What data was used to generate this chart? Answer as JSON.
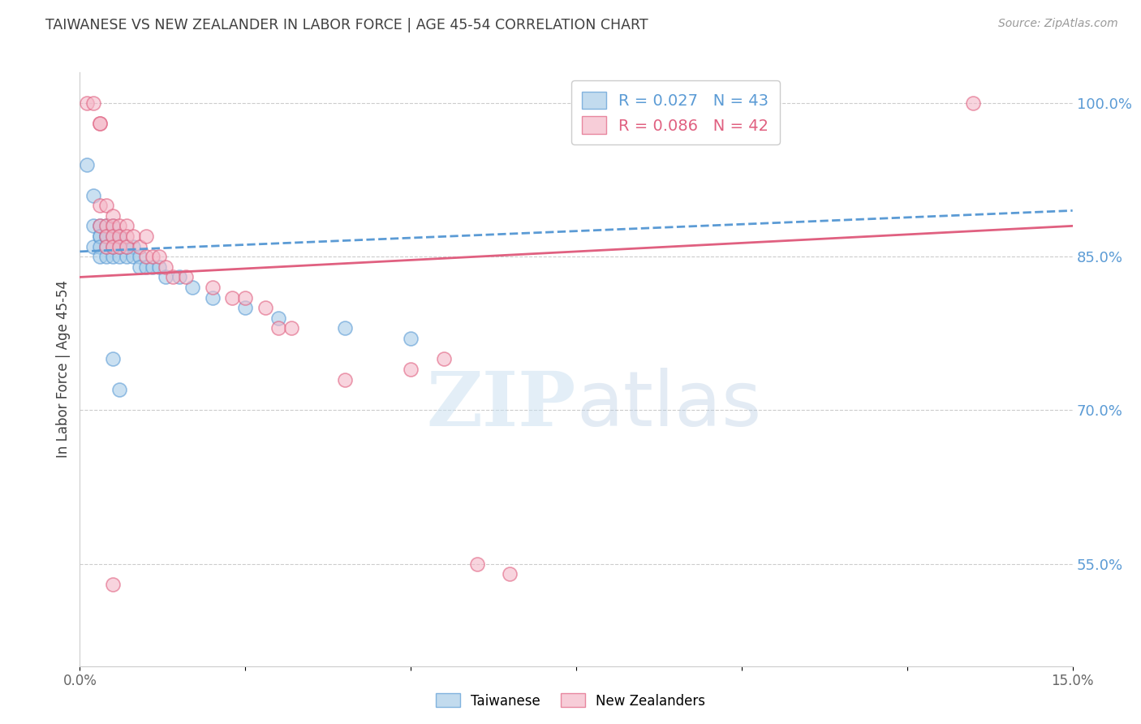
{
  "title": "TAIWANESE VS NEW ZEALANDER IN LABOR FORCE | AGE 45-54 CORRELATION CHART",
  "source": "Source: ZipAtlas.com",
  "ylabel": "In Labor Force | Age 45-54",
  "xlim": [
    0.0,
    0.15
  ],
  "ylim": [
    0.45,
    1.03
  ],
  "xtick_positions": [
    0.0,
    0.025,
    0.05,
    0.075,
    0.1,
    0.125,
    0.15
  ],
  "xticklabels": [
    "0.0%",
    "",
    "",
    "",
    "",
    "",
    "15.0%"
  ],
  "yticks_right": [
    0.55,
    0.7,
    0.85,
    1.0
  ],
  "ytick_labels_right": [
    "55.0%",
    "70.0%",
    "85.0%",
    "100.0%"
  ],
  "watermark_zip": "ZIP",
  "watermark_atlas": "atlas",
  "taiwanese_color": "#a8cce8",
  "nz_color": "#f4b8c8",
  "trendline_taiwanese_color": "#5b9bd5",
  "trendline_nz_color": "#e06080",
  "background_color": "#ffffff",
  "grid_color": "#cccccc",
  "title_color": "#404040",
  "axis_label_color": "#404040",
  "right_tick_color": "#5b9bd5",
  "legend_text_tw_color": "#5b9bd5",
  "legend_text_nz_color": "#e06080",
  "taiwanese_x": [
    0.001,
    0.002,
    0.002,
    0.002,
    0.003,
    0.003,
    0.003,
    0.003,
    0.003,
    0.004,
    0.004,
    0.004,
    0.004,
    0.004,
    0.005,
    0.005,
    0.005,
    0.005,
    0.005,
    0.005,
    0.006,
    0.006,
    0.006,
    0.006,
    0.007,
    0.007,
    0.008,
    0.008,
    0.009,
    0.009,
    0.01,
    0.011,
    0.012,
    0.013,
    0.015,
    0.017,
    0.02,
    0.025,
    0.03,
    0.04,
    0.05,
    0.005,
    0.006
  ],
  "taiwanese_y": [
    0.94,
    0.91,
    0.88,
    0.86,
    0.88,
    0.87,
    0.87,
    0.86,
    0.85,
    0.88,
    0.87,
    0.87,
    0.86,
    0.85,
    0.88,
    0.87,
    0.87,
    0.86,
    0.86,
    0.85,
    0.87,
    0.87,
    0.86,
    0.85,
    0.86,
    0.85,
    0.86,
    0.85,
    0.85,
    0.84,
    0.84,
    0.84,
    0.84,
    0.83,
    0.83,
    0.82,
    0.81,
    0.8,
    0.79,
    0.78,
    0.77,
    0.75,
    0.72
  ],
  "nz_x": [
    0.001,
    0.002,
    0.003,
    0.003,
    0.003,
    0.003,
    0.004,
    0.004,
    0.004,
    0.004,
    0.005,
    0.005,
    0.005,
    0.005,
    0.006,
    0.006,
    0.006,
    0.007,
    0.007,
    0.007,
    0.008,
    0.009,
    0.01,
    0.01,
    0.011,
    0.012,
    0.013,
    0.014,
    0.016,
    0.02,
    0.023,
    0.025,
    0.028,
    0.03,
    0.032,
    0.04,
    0.05,
    0.055,
    0.06,
    0.065,
    0.135,
    0.005
  ],
  "nz_y": [
    1.0,
    1.0,
    0.98,
    0.98,
    0.9,
    0.88,
    0.9,
    0.88,
    0.87,
    0.86,
    0.89,
    0.88,
    0.87,
    0.86,
    0.88,
    0.87,
    0.86,
    0.88,
    0.87,
    0.86,
    0.87,
    0.86,
    0.87,
    0.85,
    0.85,
    0.85,
    0.84,
    0.83,
    0.83,
    0.82,
    0.81,
    0.81,
    0.8,
    0.78,
    0.78,
    0.73,
    0.74,
    0.75,
    0.55,
    0.54,
    1.0,
    0.53
  ],
  "trendline_tw_x0": 0.0,
  "trendline_tw_y0": 0.855,
  "trendline_tw_x1": 0.15,
  "trendline_tw_y1": 0.895,
  "trendline_nz_x0": 0.0,
  "trendline_nz_y0": 0.83,
  "trendline_nz_x1": 0.15,
  "trendline_nz_y1": 0.88
}
